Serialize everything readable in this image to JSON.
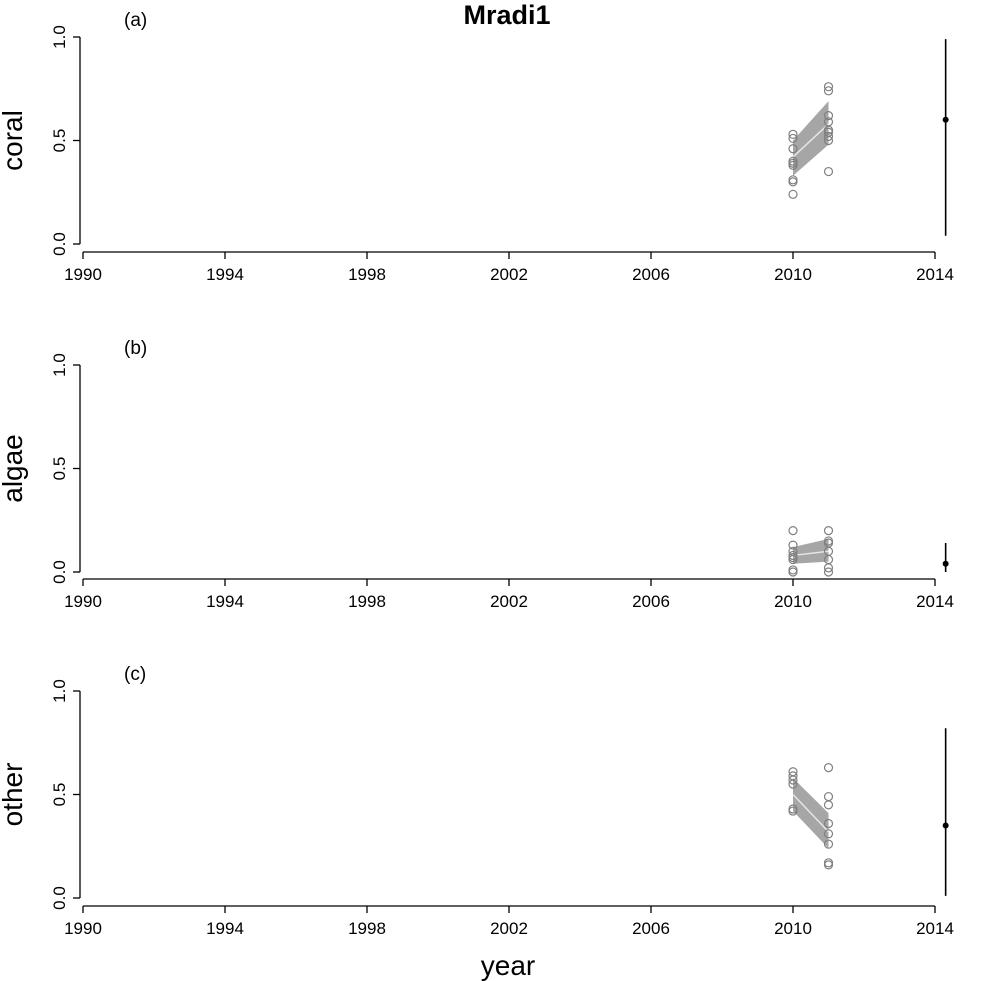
{
  "title": "Mradi1",
  "xlabel": "year",
  "colors": {
    "axis": "#000000",
    "band": "#a6a6a6",
    "trend_line": "#e6e6e6",
    "observed_points": "#7f7f7f",
    "prediction": "#000000"
  },
  "chart_data": [
    {
      "type": "scatter",
      "panel": "(a)",
      "ylabel": "coral",
      "xlim": [
        1990,
        2014
      ],
      "ylim": [
        0,
        1
      ],
      "x_ticks": [
        "1990",
        "1994",
        "1998",
        "2002",
        "2006",
        "2010",
        "2014"
      ],
      "y_ticks": [
        "0.0",
        "0.5",
        "1.0"
      ],
      "observations": [
        {
          "x": 2010,
          "values": [
            0.53,
            0.51,
            0.46,
            0.4,
            0.39,
            0.38,
            0.31,
            0.3,
            0.24
          ]
        },
        {
          "x": 2011,
          "values": [
            0.76,
            0.74,
            0.62,
            0.59,
            0.55,
            0.54,
            0.52,
            0.5,
            0.35
          ]
        }
      ],
      "trend": {
        "x": [
          2010,
          2011
        ],
        "y": [
          0.42,
          0.58
        ],
        "lower": [
          0.33,
          0.48
        ],
        "upper": [
          0.5,
          0.69
        ]
      },
      "prediction": {
        "x": 2014.3,
        "y": 0.6,
        "lower": 0.04,
        "upper": 0.99
      }
    },
    {
      "type": "scatter",
      "panel": "(b)",
      "ylabel": "algae",
      "xlim": [
        1990,
        2014
      ],
      "ylim": [
        0,
        1
      ],
      "x_ticks": [
        "1990",
        "1994",
        "1998",
        "2002",
        "2006",
        "2010",
        "2014"
      ],
      "y_ticks": [
        "0.0",
        "0.5",
        "1.0"
      ],
      "observations": [
        {
          "x": 2010,
          "values": [
            0.2,
            0.13,
            0.1,
            0.08,
            0.07,
            0.06,
            0.01,
            0.0
          ]
        },
        {
          "x": 2011,
          "values": [
            0.2,
            0.15,
            0.14,
            0.1,
            0.06,
            0.02,
            0.0
          ]
        }
      ],
      "trend": {
        "x": [
          2010,
          2011
        ],
        "y": [
          0.08,
          0.1
        ],
        "lower": [
          0.04,
          0.05
        ],
        "upper": [
          0.12,
          0.16
        ]
      },
      "prediction": {
        "x": 2014.3,
        "y": 0.04,
        "lower": 0.0,
        "upper": 0.14
      }
    },
    {
      "type": "scatter",
      "panel": "(c)",
      "ylabel": "other",
      "xlim": [
        1990,
        2014
      ],
      "ylim": [
        0,
        1
      ],
      "x_ticks": [
        "1990",
        "1994",
        "1998",
        "2002",
        "2006",
        "2010",
        "2014"
      ],
      "y_ticks": [
        "0.0",
        "0.5",
        "1.0"
      ],
      "observations": [
        {
          "x": 2010,
          "values": [
            0.61,
            0.59,
            0.57,
            0.55,
            0.43,
            0.42
          ]
        },
        {
          "x": 2011,
          "values": [
            0.63,
            0.49,
            0.45,
            0.36,
            0.31,
            0.26,
            0.17,
            0.16
          ]
        }
      ],
      "trend": {
        "x": [
          2010,
          2011
        ],
        "y": [
          0.5,
          0.32
        ],
        "lower": [
          0.42,
          0.24
        ],
        "upper": [
          0.58,
          0.41
        ]
      },
      "prediction": {
        "x": 2014.3,
        "y": 0.35,
        "lower": 0.01,
        "upper": 0.82
      }
    }
  ]
}
